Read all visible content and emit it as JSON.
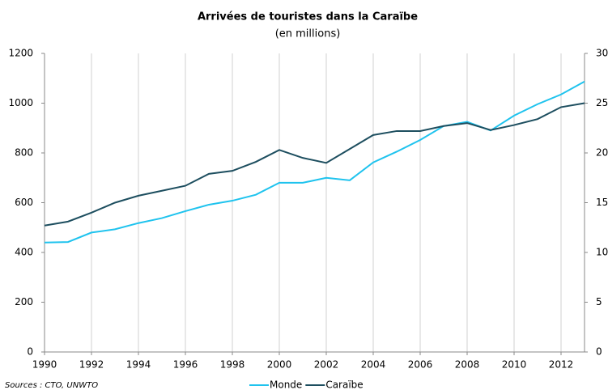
{
  "chart_data": {
    "type": "line",
    "title": "Arrivées de touristes dans la Caraïbe",
    "subtitle": "(en millions)",
    "source": "Sources : CTO, UNWTO",
    "x": [
      1990,
      1991,
      1992,
      1993,
      1994,
      1995,
      1996,
      1997,
      1998,
      1999,
      2000,
      2001,
      2002,
      2003,
      2004,
      2005,
      2006,
      2007,
      2008,
      2009,
      2010,
      2011,
      2012,
      2013
    ],
    "series": [
      {
        "name": "Monde",
        "color": "#1fc3ee",
        "axis": "y",
        "values": [
          440,
          442,
          480,
          493,
          518,
          538,
          566,
          592,
          608,
          632,
          680,
          680,
          700,
          690,
          762,
          805,
          852,
          908,
          925,
          890,
          950,
          996,
          1035,
          1087
        ]
      },
      {
        "name": "Caraïbe",
        "color": "#1d4e5f",
        "axis": "y2",
        "values": [
          12.7,
          13.1,
          14.0,
          15.0,
          15.7,
          16.2,
          16.7,
          17.9,
          18.2,
          19.1,
          20.3,
          19.5,
          19.0,
          20.4,
          21.8,
          22.2,
          22.2,
          22.7,
          23.0,
          22.3,
          22.8,
          23.4,
          24.6,
          25.0
        ]
      }
    ],
    "xlim": [
      1990,
      2013
    ],
    "xticks": [
      1990,
      1992,
      1994,
      1996,
      1998,
      2000,
      2002,
      2004,
      2006,
      2008,
      2010,
      2012
    ],
    "ylim": [
      0,
      1200
    ],
    "yticks": [
      0,
      200,
      400,
      600,
      800,
      1000,
      1200
    ],
    "y2lim": [
      0,
      30
    ],
    "y2ticks": [
      0,
      5,
      10,
      15,
      20,
      25,
      30
    ],
    "grid": "x",
    "legend": "bottom"
  }
}
